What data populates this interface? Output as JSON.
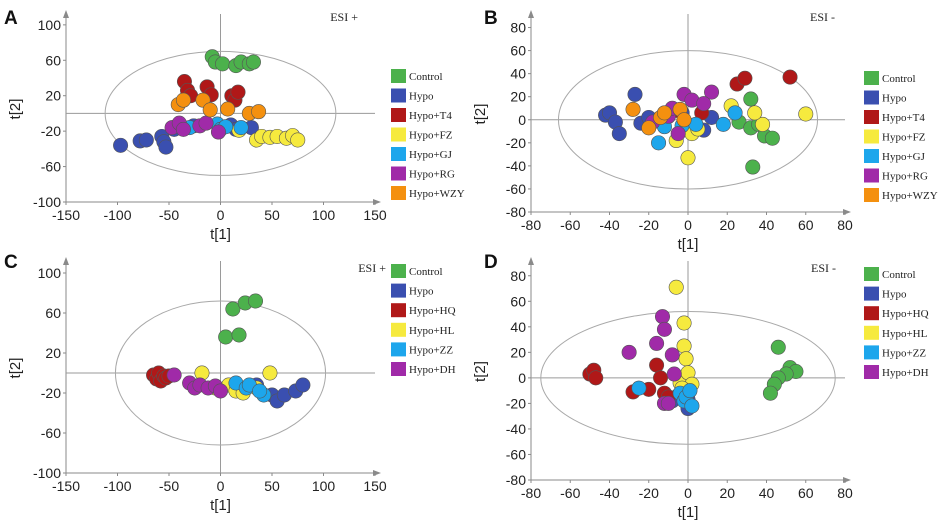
{
  "colors": {
    "Control": "#4cb14c",
    "Hypo": "#3a4fb0",
    "Hypo+T4": "#b01818",
    "Hypo+FZ": "#f6ea3e",
    "Hypo+GJ": "#1da6ec",
    "Hypo+RG": "#a02aa8",
    "Hypo+WZY": "#f4900f",
    "Hypo+HQ": "#b01818",
    "Hypo+HL": "#f6ea3e",
    "Hypo+ZZ": "#1da6ec",
    "Hypo+DH": "#a02aa8"
  },
  "chart_data": [
    {
      "panel": "A",
      "type": "scatter",
      "mode": "ESI +",
      "xlabel": "t[1]",
      "ylabel": "t[2]",
      "xlim": [
        -150,
        150
      ],
      "ylim": [
        -100,
        110
      ],
      "xticks": [
        -150,
        -100,
        -50,
        0,
        50,
        100,
        150
      ],
      "yticks": [
        100,
        60,
        20,
        -20,
        -60,
        -100
      ],
      "ellipse": {
        "rx": 112,
        "ry": 70
      },
      "legend": [
        "Control",
        "Hypo",
        "Hypo+T4",
        "Hypo+FZ",
        "Hypo+GJ",
        "Hypo+RG",
        "Hypo+WZY"
      ],
      "series": [
        {
          "name": "Control",
          "points": [
            [
              -8,
              64
            ],
            [
              -5,
              58
            ],
            [
              2,
              56
            ],
            [
              15,
              54
            ],
            [
              20,
              58
            ],
            [
              28,
              56
            ],
            [
              32,
              58
            ]
          ]
        },
        {
          "name": "Hypo",
          "points": [
            [
              -97,
              -36
            ],
            [
              -78,
              -31
            ],
            [
              -72,
              -30
            ],
            [
              -57,
              -26
            ],
            [
              -55,
              -32
            ],
            [
              -53,
              -38
            ],
            [
              -45,
              -18
            ],
            [
              -26,
              -14
            ],
            [
              10,
              -13
            ],
            [
              15,
              -18
            ],
            [
              30,
              -16
            ]
          ]
        },
        {
          "name": "Hypo+T4",
          "points": [
            [
              -35,
              36
            ],
            [
              -32,
              26
            ],
            [
              -29,
              20
            ],
            [
              -13,
              30
            ],
            [
              -9,
              21
            ],
            [
              11,
              20
            ],
            [
              14,
              15
            ],
            [
              17,
              24
            ]
          ]
        },
        {
          "name": "Hypo+FZ",
          "points": [
            [
              18,
              -19
            ],
            [
              35,
              -30
            ],
            [
              40,
              -26
            ],
            [
              48,
              -27
            ],
            [
              55,
              -26
            ],
            [
              64,
              -28
            ],
            [
              70,
              -25
            ],
            [
              75,
              -30
            ]
          ]
        },
        {
          "name": "Hypo+GJ",
          "points": [
            [
              -30,
              -16
            ],
            [
              -3,
              -12
            ],
            [
              0,
              -18
            ],
            [
              5,
              -15
            ],
            [
              20,
              -16
            ]
          ]
        },
        {
          "name": "Hypo+RG",
          "points": [
            [
              -47,
              -16
            ],
            [
              -40,
              -11
            ],
            [
              -36,
              -18
            ],
            [
              -20,
              -14
            ],
            [
              -14,
              -11
            ],
            [
              -2,
              -21
            ]
          ]
        },
        {
          "name": "Hypo+WZY",
          "points": [
            [
              -41,
              10
            ],
            [
              -36,
              15
            ],
            [
              -17,
              15
            ],
            [
              -10,
              4
            ],
            [
              7,
              5
            ],
            [
              28,
              0
            ],
            [
              37,
              2
            ]
          ]
        }
      ]
    },
    {
      "panel": "B",
      "type": "scatter",
      "mode": "ESI -",
      "xlabel": "t[1]",
      "ylabel": "t[2]",
      "xlim": [
        -80,
        80
      ],
      "ylim": [
        -80,
        90
      ],
      "xticks": [
        -80,
        -60,
        -40,
        -20,
        0,
        20,
        40,
        60,
        80
      ],
      "yticks": [
        80,
        60,
        40,
        20,
        0,
        -20,
        -40,
        -60,
        -80
      ],
      "ellipse": {
        "rx": 66,
        "ry": 60
      },
      "legend": [
        "Control",
        "Hypo",
        "Hypo+T4",
        "Hypo+FZ",
        "Hypo+GJ",
        "Hypo+RG",
        "Hypo+WZY"
      ],
      "series": [
        {
          "name": "Control",
          "points": [
            [
              32,
              18
            ],
            [
              26,
              -2
            ],
            [
              32,
              -7
            ],
            [
              36,
              -4
            ],
            [
              39,
              -14
            ],
            [
              43,
              -16
            ],
            [
              33,
              -41
            ]
          ]
        },
        {
          "name": "Hypo",
          "points": [
            [
              -42,
              4
            ],
            [
              -40,
              6
            ],
            [
              -37,
              -2
            ],
            [
              -35,
              -12
            ],
            [
              -27,
              22
            ],
            [
              -24,
              -3
            ],
            [
              -20,
              2
            ],
            [
              -10,
              3
            ],
            [
              -3,
              6
            ],
            [
              0,
              -7
            ],
            [
              8,
              -9
            ],
            [
              12,
              2
            ]
          ]
        },
        {
          "name": "Hypo+T4",
          "points": [
            [
              7,
              6
            ],
            [
              25,
              31
            ],
            [
              29,
              36
            ],
            [
              52,
              37
            ],
            [
              -5,
              8
            ]
          ]
        },
        {
          "name": "Hypo+FZ",
          "points": [
            [
              0,
              -33
            ],
            [
              2,
              -12
            ],
            [
              5,
              -8
            ],
            [
              22,
              12
            ],
            [
              38,
              -4
            ],
            [
              34,
              6
            ],
            [
              -6,
              -18
            ],
            [
              60,
              5
            ]
          ]
        },
        {
          "name": "Hypo+GJ",
          "points": [
            [
              -15,
              -20
            ],
            [
              -3,
              -5
            ],
            [
              4,
              -4
            ],
            [
              18,
              -4
            ],
            [
              24,
              6
            ],
            [
              -12,
              -6
            ]
          ]
        },
        {
          "name": "Hypo+RG",
          "points": [
            [
              -10,
              3
            ],
            [
              -8,
              10
            ],
            [
              -5,
              -12
            ],
            [
              -2,
              22
            ],
            [
              2,
              17
            ],
            [
              12,
              24
            ],
            [
              8,
              14
            ],
            [
              -18,
              -2
            ]
          ]
        },
        {
          "name": "Hypo+WZY",
          "points": [
            [
              -28,
              9
            ],
            [
              -20,
              -7
            ],
            [
              -14,
              2
            ],
            [
              -12,
              6
            ],
            [
              -4,
              9
            ],
            [
              -2,
              0
            ]
          ]
        }
      ]
    },
    {
      "panel": "C",
      "type": "scatter",
      "mode": "ESI +",
      "xlabel": "t[1]",
      "ylabel": "t[2]",
      "xlim": [
        -150,
        150
      ],
      "ylim": [
        -100,
        110
      ],
      "xticks": [
        -150,
        -100,
        -50,
        0,
        50,
        100,
        150
      ],
      "yticks": [
        100,
        60,
        20,
        -20,
        -60,
        -100
      ],
      "ellipse": {
        "rx": 102,
        "ry": 72
      },
      "legend": [
        "Control",
        "Hypo",
        "Hypo+HQ",
        "Hypo+HL",
        "Hypo+ZZ",
        "Hypo+DH"
      ],
      "series": [
        {
          "name": "Control",
          "points": [
            [
              5,
              36
            ],
            [
              18,
              38
            ],
            [
              12,
              64
            ],
            [
              24,
              70
            ],
            [
              34,
              72
            ]
          ]
        },
        {
          "name": "Hypo",
          "points": [
            [
              20,
              -15
            ],
            [
              35,
              -12
            ],
            [
              50,
              -22
            ],
            [
              55,
              -28
            ],
            [
              62,
              -22
            ],
            [
              73,
              -18
            ],
            [
              80,
              -12
            ]
          ]
        },
        {
          "name": "Hypo+HQ",
          "points": [
            [
              -65,
              -2
            ],
            [
              -62,
              -6
            ],
            [
              -60,
              0
            ],
            [
              -58,
              -8
            ],
            [
              -55,
              -3
            ],
            [
              -53,
              -5
            ],
            [
              -50,
              -3
            ]
          ]
        },
        {
          "name": "Hypo+HL",
          "points": [
            [
              -18,
              0
            ],
            [
              -5,
              -15
            ],
            [
              8,
              -12
            ],
            [
              15,
              -18
            ],
            [
              22,
              -20
            ],
            [
              35,
              -15
            ],
            [
              48,
              0
            ]
          ]
        },
        {
          "name": "Hypo+ZZ",
          "points": [
            [
              15,
              -10
            ],
            [
              25,
              -15
            ],
            [
              42,
              -22
            ],
            [
              28,
              -12
            ],
            [
              38,
              -18
            ]
          ]
        },
        {
          "name": "Hypo+DH",
          "points": [
            [
              -45,
              -2
            ],
            [
              -30,
              -10
            ],
            [
              -25,
              -15
            ],
            [
              -20,
              -12
            ],
            [
              -12,
              -15
            ],
            [
              -5,
              -13
            ],
            [
              0,
              -18
            ]
          ]
        }
      ]
    },
    {
      "panel": "D",
      "type": "scatter",
      "mode": "ESI -",
      "xlabel": "t[1]",
      "ylabel": "t[2]",
      "xlim": [
        -80,
        80
      ],
      "ylim": [
        -80,
        90
      ],
      "xticks": [
        -80,
        -60,
        -40,
        -20,
        0,
        20,
        40,
        60,
        80
      ],
      "yticks": [
        80,
        60,
        40,
        20,
        0,
        -20,
        -40,
        -60,
        -80
      ],
      "ellipse": {
        "rx": 75,
        "ry": 52
      },
      "legend": [
        "Control",
        "Hypo",
        "Hypo+HQ",
        "Hypo+HL",
        "Hypo+ZZ",
        "Hypo+DH"
      ],
      "series": [
        {
          "name": "Control",
          "points": [
            [
              46,
              24
            ],
            [
              52,
              8
            ],
            [
              55,
              5
            ],
            [
              50,
              3
            ],
            [
              46,
              0
            ],
            [
              44,
              -5
            ],
            [
              42,
              -12
            ]
          ]
        },
        {
          "name": "Hypo",
          "points": [
            [
              -10,
              -18
            ],
            [
              -6,
              -15
            ],
            [
              -3,
              -8
            ],
            [
              0,
              -17
            ],
            [
              0,
              -20
            ],
            [
              0,
              -24
            ],
            [
              -8,
              -18
            ]
          ]
        },
        {
          "name": "Hypo+HQ",
          "points": [
            [
              -50,
              3
            ],
            [
              -48,
              6
            ],
            [
              -47,
              0
            ],
            [
              -28,
              -11
            ],
            [
              -20,
              -9
            ],
            [
              -16,
              10
            ],
            [
              -14,
              0
            ],
            [
              -12,
              -12
            ],
            [
              -10,
              -15
            ]
          ]
        },
        {
          "name": "Hypo+HL",
          "points": [
            [
              -6,
              71
            ],
            [
              -2,
              43
            ],
            [
              -2,
              25
            ],
            [
              -1,
              15
            ],
            [
              -4,
              -4
            ],
            [
              0,
              4
            ],
            [
              2,
              -5
            ],
            [
              -3,
              -8
            ]
          ]
        },
        {
          "name": "Hypo+ZZ",
          "points": [
            [
              -25,
              -8
            ],
            [
              -4,
              -12
            ],
            [
              -2,
              -18
            ],
            [
              -1,
              -15
            ],
            [
              1,
              -10
            ],
            [
              2,
              -22
            ]
          ]
        },
        {
          "name": "Hypo+DH",
          "points": [
            [
              -30,
              20
            ],
            [
              -16,
              27
            ],
            [
              -13,
              48
            ],
            [
              -12,
              38
            ],
            [
              -8,
              18
            ],
            [
              -7,
              3
            ],
            [
              -12,
              -20
            ],
            [
              -10,
              -20
            ]
          ]
        }
      ]
    }
  ]
}
